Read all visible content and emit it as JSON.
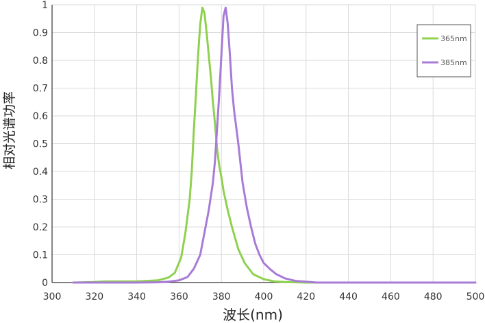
{
  "chart_data": {
    "type": "line",
    "xlabel": "波长(nm)",
    "ylabel": "相对光谱功率",
    "xlim": [
      300,
      500
    ],
    "ylim": [
      0,
      1
    ],
    "x_ticks": [
      "300",
      "320",
      "340",
      "360",
      "380",
      "400",
      "420",
      "440",
      "460",
      "480",
      "500"
    ],
    "y_ticks": [
      "0",
      "0.1",
      "0.2",
      "0.3",
      "0.4",
      "0.5",
      "0.6",
      "0.7",
      "0.8",
      "0.9",
      "1"
    ],
    "grid": true,
    "legend_position": "top-right",
    "series": [
      {
        "name": "365nm",
        "color": "#8fd14f",
        "points": [
          [
            310,
            0.0
          ],
          [
            320,
            0.002
          ],
          [
            325,
            0.004
          ],
          [
            330,
            0.004
          ],
          [
            340,
            0.004
          ],
          [
            345,
            0.006
          ],
          [
            350,
            0.008
          ],
          [
            355,
            0.018
          ],
          [
            358,
            0.035
          ],
          [
            361,
            0.09
          ],
          [
            363,
            0.18
          ],
          [
            365,
            0.3
          ],
          [
            366,
            0.4
          ],
          [
            367,
            0.55
          ],
          [
            368,
            0.68
          ],
          [
            369,
            0.82
          ],
          [
            370,
            0.93
          ],
          [
            371,
            0.99
          ],
          [
            372,
            0.97
          ],
          [
            373,
            0.9
          ],
          [
            374,
            0.82
          ],
          [
            375,
            0.74
          ],
          [
            376,
            0.65
          ],
          [
            377,
            0.57
          ],
          [
            378,
            0.48
          ],
          [
            379,
            0.42
          ],
          [
            380,
            0.38
          ],
          [
            381,
            0.33
          ],
          [
            383,
            0.26
          ],
          [
            385,
            0.2
          ],
          [
            388,
            0.12
          ],
          [
            391,
            0.07
          ],
          [
            395,
            0.03
          ],
          [
            400,
            0.012
          ],
          [
            405,
            0.004
          ],
          [
            410,
            0.002
          ],
          [
            420,
            0.0
          ],
          [
            500,
            0.0
          ]
        ]
      },
      {
        "name": "385nm",
        "color": "#a77bd6",
        "points": [
          [
            310,
            0.0
          ],
          [
            340,
            0.0
          ],
          [
            350,
            0.001
          ],
          [
            355,
            0.003
          ],
          [
            360,
            0.008
          ],
          [
            364,
            0.02
          ],
          [
            367,
            0.05
          ],
          [
            370,
            0.1
          ],
          [
            372,
            0.18
          ],
          [
            374,
            0.26
          ],
          [
            376,
            0.36
          ],
          [
            377,
            0.44
          ],
          [
            378,
            0.56
          ],
          [
            379,
            0.68
          ],
          [
            380,
            0.82
          ],
          [
            381,
            0.96
          ],
          [
            382,
            0.99
          ],
          [
            383,
            0.93
          ],
          [
            384,
            0.82
          ],
          [
            385,
            0.7
          ],
          [
            386,
            0.62
          ],
          [
            387,
            0.56
          ],
          [
            388,
            0.5
          ],
          [
            389,
            0.43
          ],
          [
            390,
            0.36
          ],
          [
            392,
            0.27
          ],
          [
            394,
            0.2
          ],
          [
            396,
            0.14
          ],
          [
            398,
            0.1
          ],
          [
            400,
            0.07
          ],
          [
            403,
            0.048
          ],
          [
            406,
            0.03
          ],
          [
            410,
            0.015
          ],
          [
            415,
            0.006
          ],
          [
            420,
            0.003
          ],
          [
            425,
            0.0
          ],
          [
            500,
            0.0
          ]
        ]
      }
    ]
  }
}
